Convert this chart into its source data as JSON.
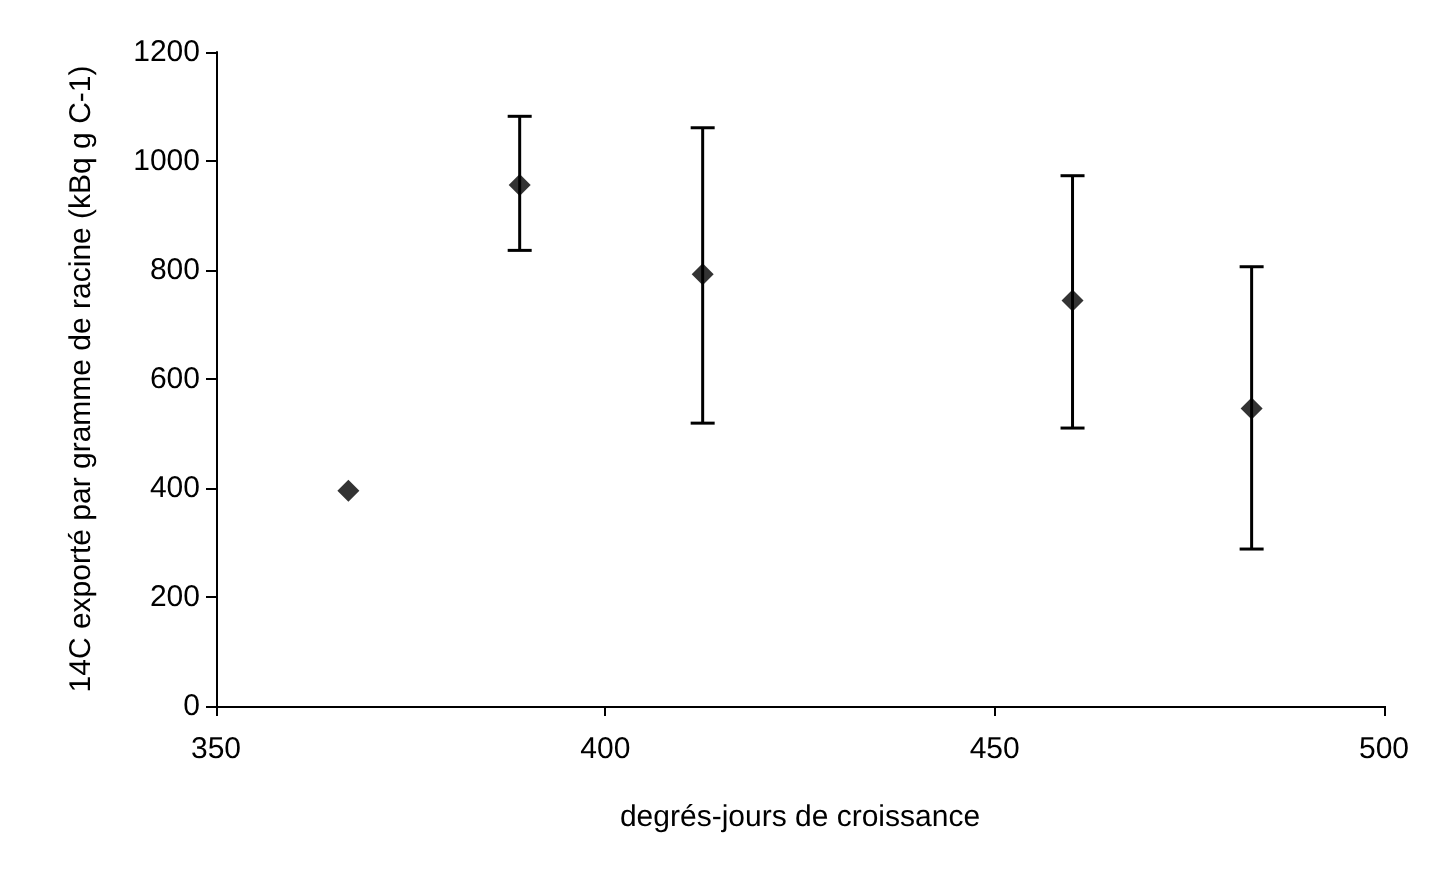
{
  "chart_data": {
    "type": "scatter",
    "xlabel": "degrés-jours de croissance",
    "ylabel": "14C exporté par gramme de racine (kBq g C-1)",
    "x": [
      367,
      389,
      412.5,
      460,
      483
    ],
    "values": [
      395,
      956,
      792,
      744,
      546
    ],
    "errors": [
      null,
      [
        836,
        1082
      ],
      [
        519,
        1061
      ],
      [
        510,
        973
      ],
      [
        288,
        806
      ]
    ],
    "color": "#000000",
    "marker": "diamond",
    "xlim": [
      350,
      500
    ],
    "xticks": [
      350,
      400,
      450,
      500
    ],
    "ylim": [
      0,
      1200
    ],
    "yticks": [
      0,
      200,
      400,
      600,
      800,
      1000,
      1200
    ],
    "grid": false
  }
}
